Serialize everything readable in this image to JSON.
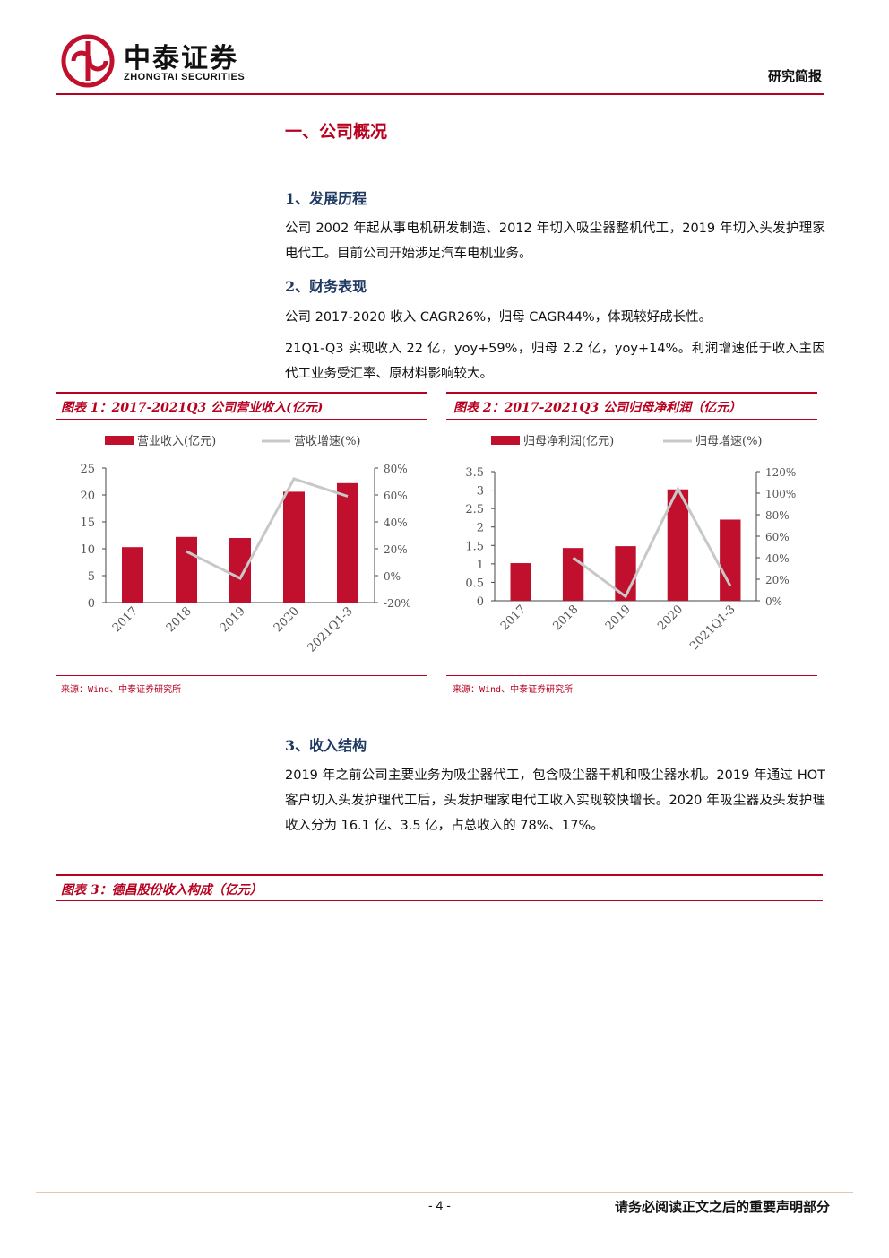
{
  "header": {
    "logo_cn": "中泰证券",
    "logo_en": "ZHONGTAI SECURITIES",
    "report_type": "研究简报"
  },
  "section1": {
    "title": "一、公司概况",
    "sub1": {
      "title": "1、发展历程",
      "text": "公司 2002 年起从事电机研发制造、2012 年切入吸尘器整机代工，2019 年切入头发护理家电代工。目前公司开始涉足汽车电机业务。"
    },
    "sub2": {
      "title": "2、财务表现",
      "text1": "公司 2017-2020 收入 CAGR26%，归母 CAGR44%，体现较好成长性。",
      "text2": "21Q1-Q3 实现收入 22 亿，yoy+59%，归母 2.2 亿，yoy+14%。利润增速低于收入主因代工业务受汇率、原材料影响较大。"
    },
    "sub3": {
      "title": "3、收入结构",
      "text": "2019 年之前公司主要业务为吸尘器代工，包含吸尘器干机和吸尘器水机。2019 年通过 HOT 客户切入头发护理代工后，头发护理家电代工收入实现较快增长。2020 年吸尘器及头发护理收入分为 16.1 亿、3.5 亿，占总收入的 78%、17%。"
    }
  },
  "figures": {
    "fig1_title": "图表 1：2017-2021Q3 公司营业收入(亿元)",
    "fig2_title": "图表 2：2017-2021Q3 公司归母净利润（亿元）",
    "fig3_title": "图表 3：德昌股份收入构成（亿元）",
    "source1": "来源：Wind、中泰证券研究所",
    "source2": "来源：Wind、中泰证券研究所"
  },
  "chart_data": [
    {
      "type": "bar",
      "categories": [
        "2017",
        "2018",
        "2019",
        "2020",
        "2021Q1-3"
      ],
      "series": [
        {
          "name": "营业收入(亿元)",
          "kind": "bar",
          "axis": "left",
          "values": [
            10.3,
            12.2,
            12.0,
            20.6,
            22.2
          ]
        },
        {
          "name": "营收增速(%)",
          "kind": "line",
          "axis": "right",
          "values": [
            null,
            18,
            -2,
            72,
            59
          ]
        }
      ],
      "ylim_left": [
        0,
        25
      ],
      "yticks_left": [
        "0",
        "5",
        "10",
        "15",
        "20",
        "25"
      ],
      "ylim_right": [
        -20,
        80
      ],
      "yticks_right": [
        "-20%",
        "0%",
        "20%",
        "40%",
        "60%",
        "80%"
      ],
      "legend_position": "top",
      "grid": false,
      "colors": {
        "bar": "#c0102e",
        "line": "#c8c8c8"
      }
    },
    {
      "type": "bar",
      "categories": [
        "2017",
        "2018",
        "2019",
        "2020",
        "2021Q1-3"
      ],
      "series": [
        {
          "name": "归母净利润(亿元)",
          "kind": "bar",
          "axis": "left",
          "values": [
            1.02,
            1.43,
            1.48,
            3.02,
            2.2
          ]
        },
        {
          "name": "归母增速(%)",
          "kind": "line",
          "axis": "right",
          "values": [
            null,
            40,
            4,
            104,
            14
          ]
        }
      ],
      "ylim_left": [
        0,
        3.5
      ],
      "yticks_left": [
        "0",
        "0.5",
        "1",
        "1.5",
        "2",
        "2.5",
        "3",
        "3.5"
      ],
      "ylim_right": [
        0,
        120
      ],
      "yticks_right": [
        "0%",
        "20%",
        "40%",
        "60%",
        "80%",
        "100%",
        "120%"
      ],
      "legend_position": "top",
      "grid": false,
      "colors": {
        "bar": "#c0102e",
        "line": "#c8c8c8"
      }
    }
  ],
  "footer": {
    "page": "- 4 -",
    "disclaimer": "请务必阅读正文之后的重要声明部分"
  }
}
